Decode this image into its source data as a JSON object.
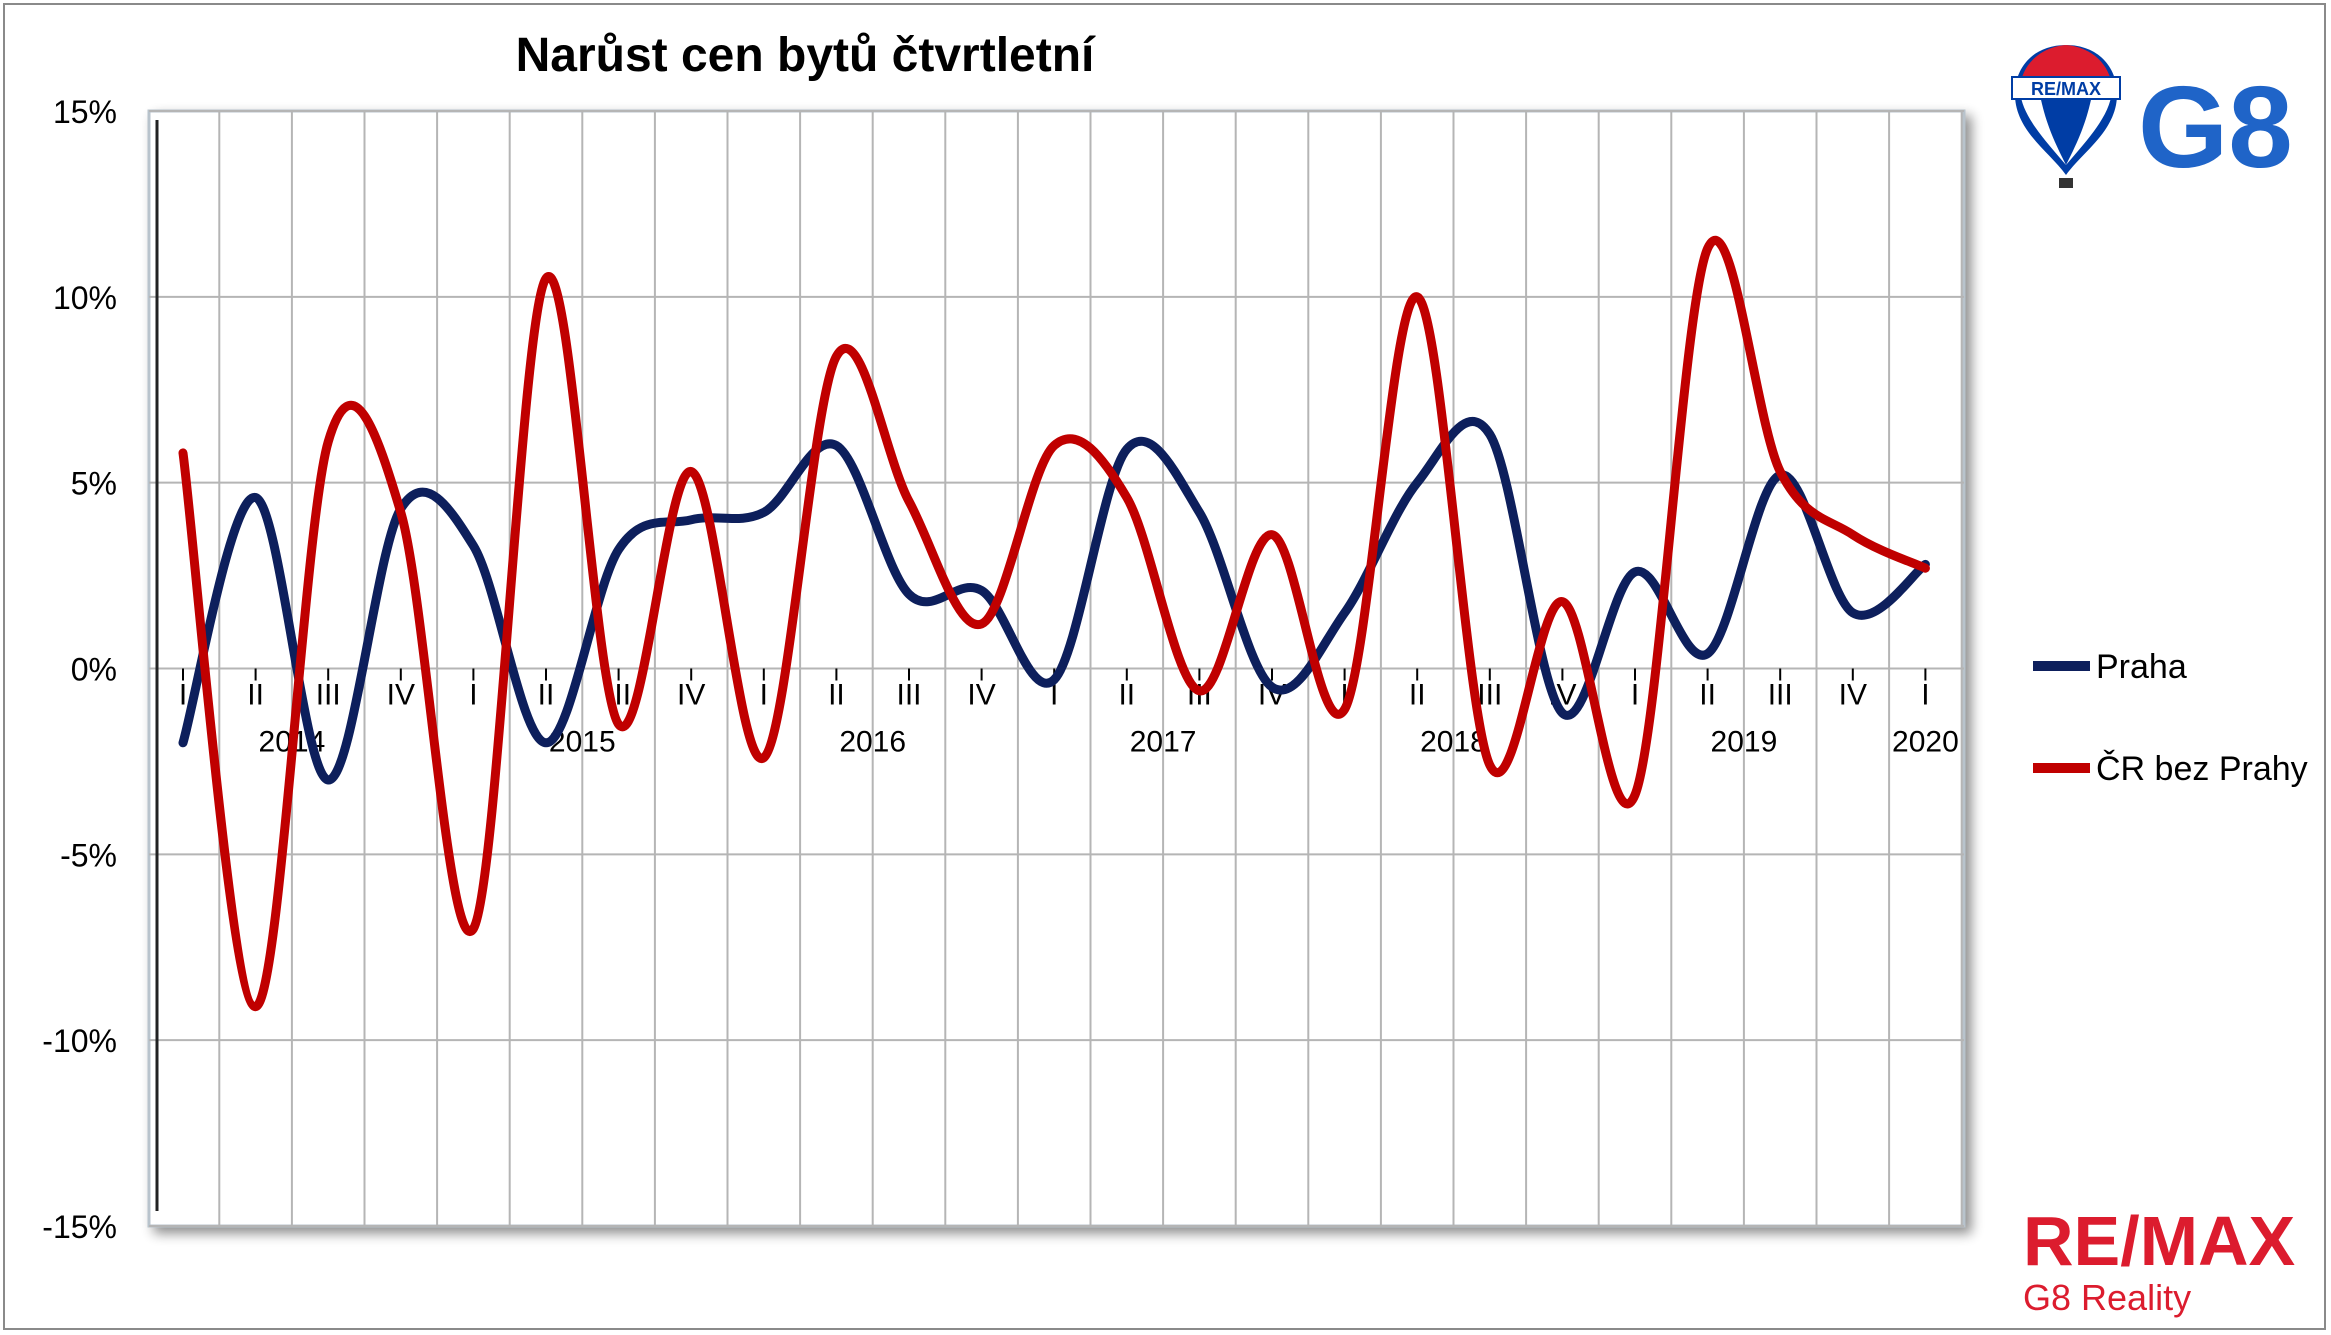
{
  "chart_data": {
    "type": "line",
    "title": "Narůst cen bytů čtvrtletní",
    "xlabel": "",
    "ylabel": "",
    "ylim": [
      -15,
      15
    ],
    "yticks": [
      15,
      10,
      5,
      0,
      -5,
      -10,
      -15
    ],
    "ytick_labels": [
      "15%",
      "10%",
      "5%",
      "0%",
      "-5%",
      "-10%",
      "-15%"
    ],
    "categories": [
      "I",
      "II",
      "III",
      "IV",
      "I",
      "II",
      "III",
      "IV",
      "I",
      "II",
      "III",
      "IV",
      "I",
      "II",
      "III",
      "IV",
      "I",
      "II",
      "III",
      "IV",
      "I",
      "II",
      "III",
      "IV",
      "I"
    ],
    "years": [
      {
        "label": "2014",
        "index": 1.5
      },
      {
        "label": "2015",
        "index": 5.5
      },
      {
        "label": "2016",
        "index": 9.5
      },
      {
        "label": "2017",
        "index": 13.5
      },
      {
        "label": "2018",
        "index": 17.5
      },
      {
        "label": "2019",
        "index": 21.5
      },
      {
        "label": "2020",
        "index": 24
      }
    ],
    "series": [
      {
        "name": "Praha",
        "color": "#0d1f5c",
        "values": [
          -2.0,
          4.6,
          -3.0,
          4.3,
          3.3,
          -2.0,
          3.2,
          4.0,
          4.2,
          6.0,
          2.0,
          2.1,
          -0.3,
          5.9,
          4.2,
          -0.5,
          1.5,
          5.0,
          6.3,
          -1.2,
          2.6,
          0.4,
          5.2,
          1.5,
          2.8
        ]
      },
      {
        "name": "ČR bez Prahy",
        "color": "#c00000",
        "values": [
          5.8,
          -9.1,
          6.1,
          4.2,
          -7.0,
          10.5,
          -1.5,
          5.3,
          -2.4,
          8.4,
          4.5,
          1.2,
          6.0,
          4.6,
          -0.6,
          3.6,
          -1.1,
          10.0,
          -2.6,
          1.8,
          -3.4,
          11.3,
          5.3,
          3.6,
          2.7
        ]
      }
    ],
    "grid": true,
    "legend_position": "right"
  },
  "logos": {
    "balloon_text": "RE/MAX",
    "brand_text": "G8",
    "footer_brand": "RE/MAX",
    "footer_sub": "G8 Reality"
  },
  "colors": {
    "remax_red": "#dc1c2e",
    "remax_blue": "#003da5",
    "g8_blue": "#1f64c8"
  }
}
